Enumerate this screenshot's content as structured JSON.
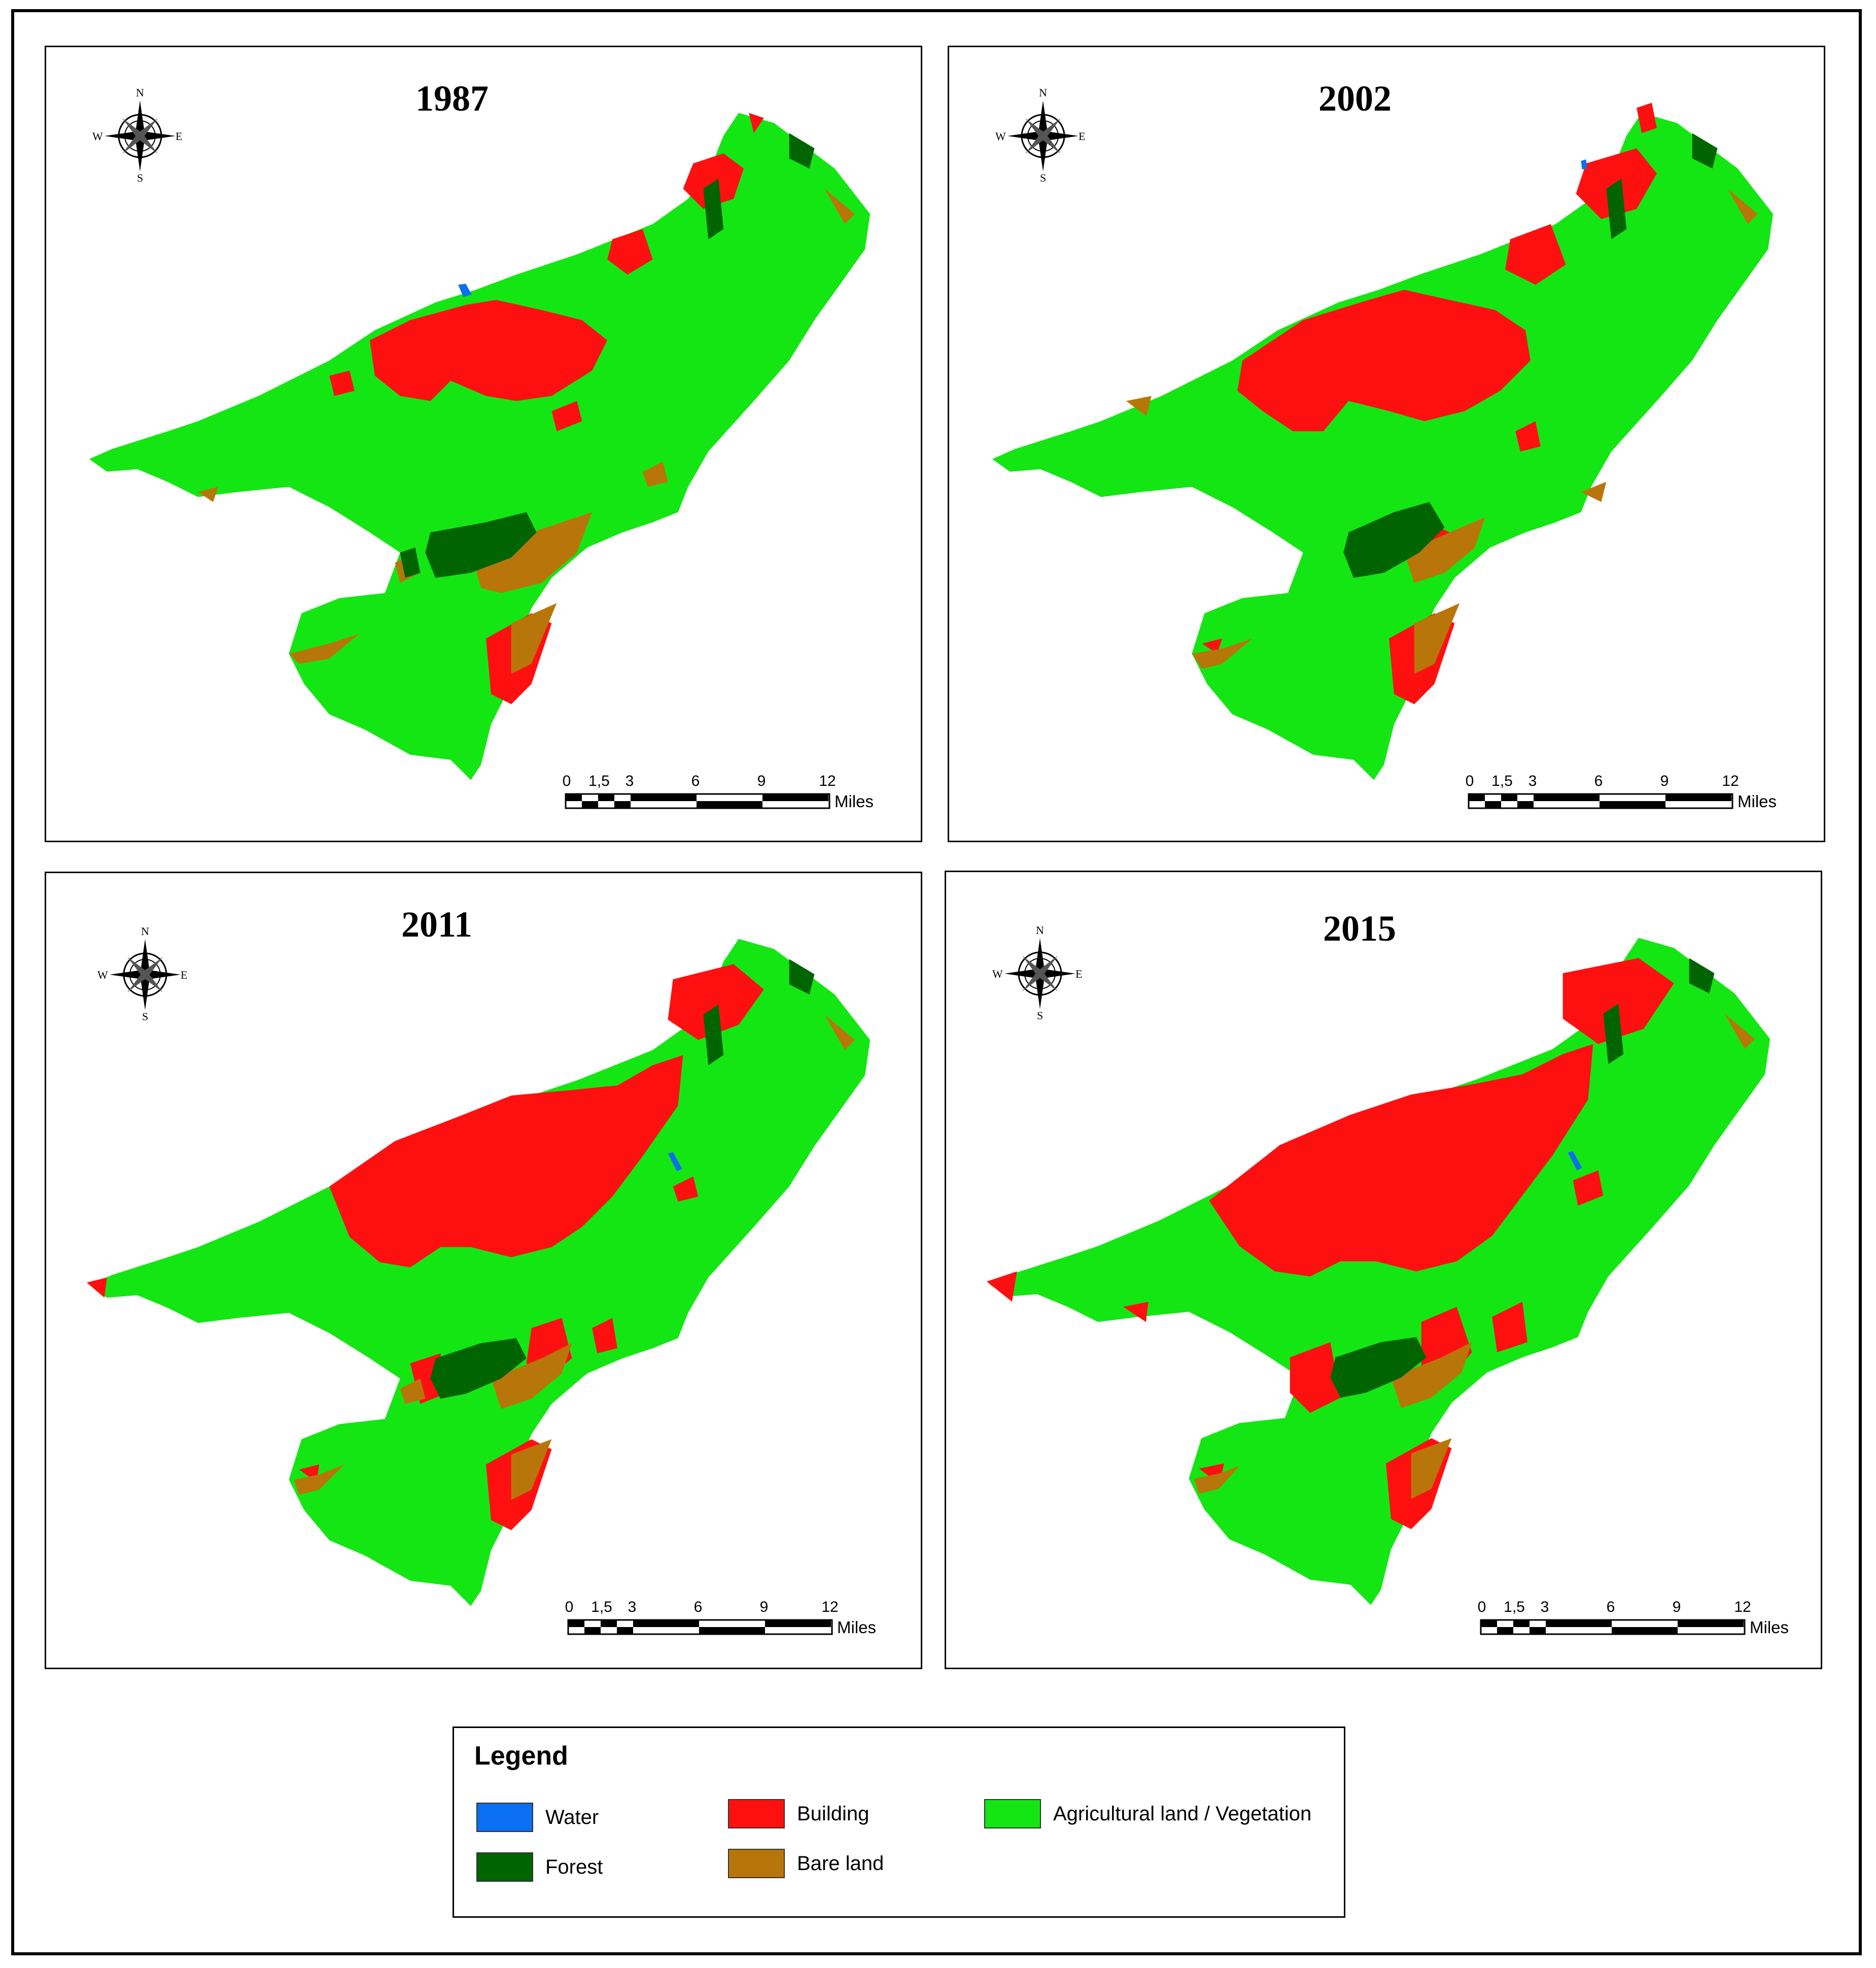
{
  "legend": {
    "title": "Legend",
    "items": [
      {
        "id": "water",
        "label": "Water",
        "color": "#0a6ff0"
      },
      {
        "id": "forest",
        "label": "Forest",
        "color": "#006400"
      },
      {
        "id": "building",
        "label": "Building",
        "color": "#ff1010"
      },
      {
        "id": "bare",
        "label": "Bare land",
        "color": "#b8760a"
      },
      {
        "id": "agri",
        "label": "Agricultural land / Vegetation",
        "color": "#14e614"
      }
    ]
  },
  "panels": [
    {
      "year": "1987",
      "compass": {
        "n": "N",
        "s": "S",
        "e": "E",
        "w": "W"
      },
      "scale": {
        "ticks": [
          "0",
          "1,5",
          "3",
          "6",
          "9",
          "12"
        ],
        "unit": "Miles"
      }
    },
    {
      "year": "2002",
      "compass": {
        "n": "N",
        "s": "S",
        "e": "E",
        "w": "W"
      },
      "scale": {
        "ticks": [
          "0",
          "1,5",
          "3",
          "6",
          "9",
          "12"
        ],
        "unit": "Miles"
      }
    },
    {
      "year": "2011",
      "compass": {
        "n": "N",
        "s": "S",
        "e": "E",
        "w": "W"
      },
      "scale": {
        "ticks": [
          "0",
          "1,5",
          "3",
          "6",
          "9",
          "12"
        ],
        "unit": "Miles"
      }
    },
    {
      "year": "2015",
      "compass": {
        "n": "N",
        "s": "S",
        "e": "E",
        "w": "W"
      },
      "scale": {
        "ticks": [
          "0",
          "1,5",
          "3",
          "6",
          "9",
          "12"
        ],
        "unit": "Miles"
      }
    }
  ]
}
